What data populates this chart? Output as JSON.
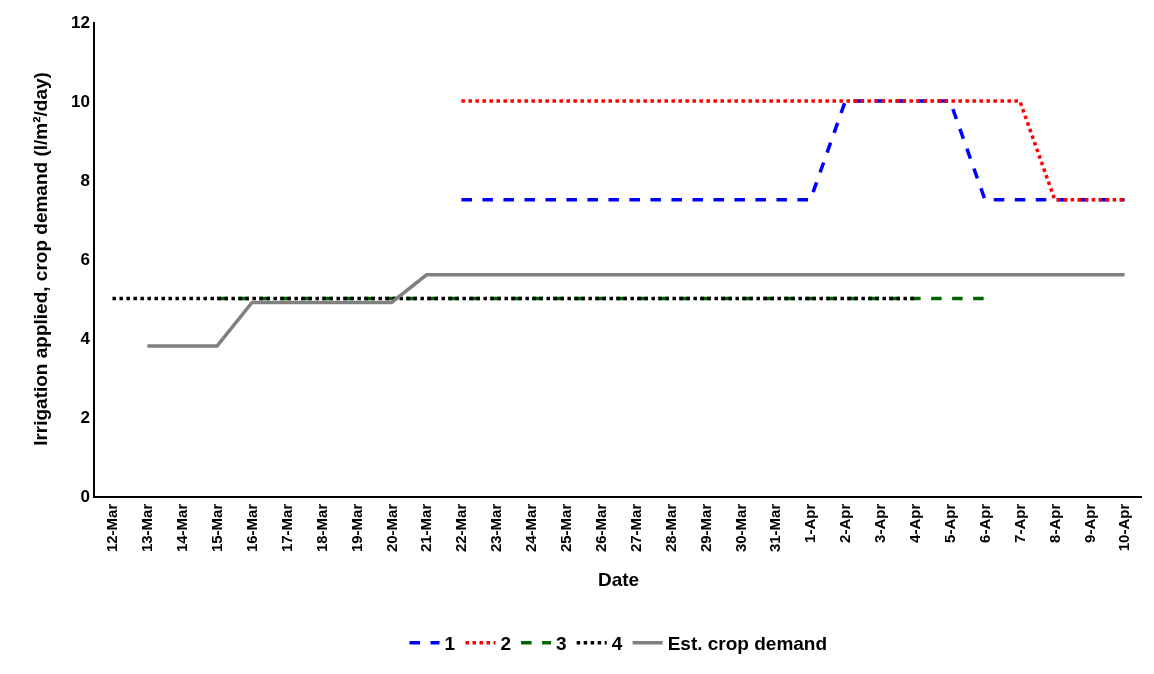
{
  "chart_data": {
    "type": "line",
    "xlabel": "Date",
    "ylabel": "Irrigation applied, crop demand (l/m²/day)",
    "categories": [
      "12-Mar",
      "13-Mar",
      "14-Mar",
      "15-Mar",
      "16-Mar",
      "17-Mar",
      "18-Mar",
      "19-Mar",
      "20-Mar",
      "21-Mar",
      "22-Mar",
      "23-Mar",
      "24-Mar",
      "25-Mar",
      "26-Mar",
      "27-Mar",
      "28-Mar",
      "29-Mar",
      "30-Mar",
      "31-Mar",
      "1-Apr",
      "2-Apr",
      "3-Apr",
      "4-Apr",
      "5-Apr",
      "6-Apr",
      "7-Apr",
      "8-Apr",
      "9-Apr",
      "10-Apr"
    ],
    "series": [
      {
        "name": "1",
        "color": "#0000ff",
        "line_style": "dashed",
        "values": [
          null,
          null,
          null,
          null,
          null,
          null,
          null,
          null,
          null,
          null,
          7.5,
          7.5,
          7.5,
          7.5,
          7.5,
          7.5,
          7.5,
          7.5,
          7.5,
          7.5,
          7.5,
          10,
          10,
          10,
          10,
          7.5,
          7.5,
          7.5,
          7.5,
          7.5
        ]
      },
      {
        "name": "2",
        "color": "#ff0000",
        "line_style": "dotted",
        "values": [
          null,
          null,
          null,
          null,
          null,
          null,
          null,
          null,
          null,
          null,
          10,
          10,
          10,
          10,
          10,
          10,
          10,
          10,
          10,
          10,
          10,
          10,
          10,
          10,
          10,
          10,
          10,
          7.5,
          7.5,
          7.5
        ]
      },
      {
        "name": "3",
        "color": "#006400",
        "line_style": "dashed",
        "values": [
          null,
          null,
          null,
          5,
          5,
          5,
          5,
          5,
          5,
          5,
          5,
          5,
          5,
          5,
          5,
          5,
          5,
          5,
          5,
          5,
          5,
          5,
          5,
          5,
          5,
          5,
          null,
          null,
          null,
          null
        ]
      },
      {
        "name": "4",
        "color": "#000000",
        "line_style": "dotted",
        "values": [
          5,
          5,
          5,
          5,
          5,
          5,
          5,
          5,
          5,
          5,
          5,
          5,
          5,
          5,
          5,
          5,
          5,
          5,
          5,
          5,
          5,
          5,
          5,
          5,
          null,
          null,
          null,
          null,
          null,
          null
        ]
      },
      {
        "name": "Est. crop demand",
        "color": "#808080",
        "line_style": "solid",
        "values": [
          null,
          3.8,
          3.8,
          3.8,
          4.9,
          4.9,
          4.9,
          4.9,
          4.9,
          5.6,
          5.6,
          5.6,
          5.6,
          5.6,
          5.6,
          5.6,
          5.6,
          5.6,
          5.6,
          5.6,
          5.6,
          5.6,
          5.6,
          5.6,
          5.6,
          5.6,
          5.6,
          5.6,
          5.6,
          5.6
        ]
      }
    ],
    "ylim": [
      0,
      12
    ],
    "yticks": [
      0,
      2,
      4,
      6,
      8,
      10,
      12
    ],
    "grid": false,
    "legend": "bottom"
  }
}
